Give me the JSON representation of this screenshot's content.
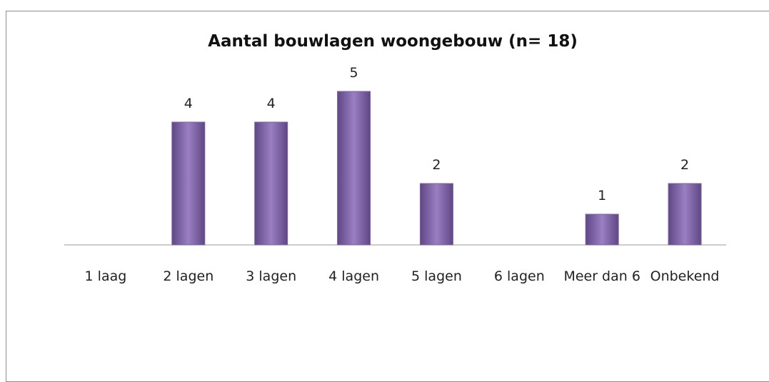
{
  "chart_data": {
    "type": "bar",
    "title": "Aantal bouwlagen woongebouw (n= 18)",
    "categories": [
      "1 laag",
      "2 lagen",
      "3 lagen",
      "4 lagen",
      "5 lagen",
      "6 lagen",
      "Meer dan 6",
      "Onbekend"
    ],
    "values": [
      0,
      4,
      4,
      5,
      2,
      0,
      1,
      2
    ],
    "value_labels": [
      null,
      "4",
      "4",
      "5",
      "2",
      null,
      "1",
      "2"
    ],
    "color": "#8064a2",
    "ylim": [
      0,
      5
    ]
  }
}
